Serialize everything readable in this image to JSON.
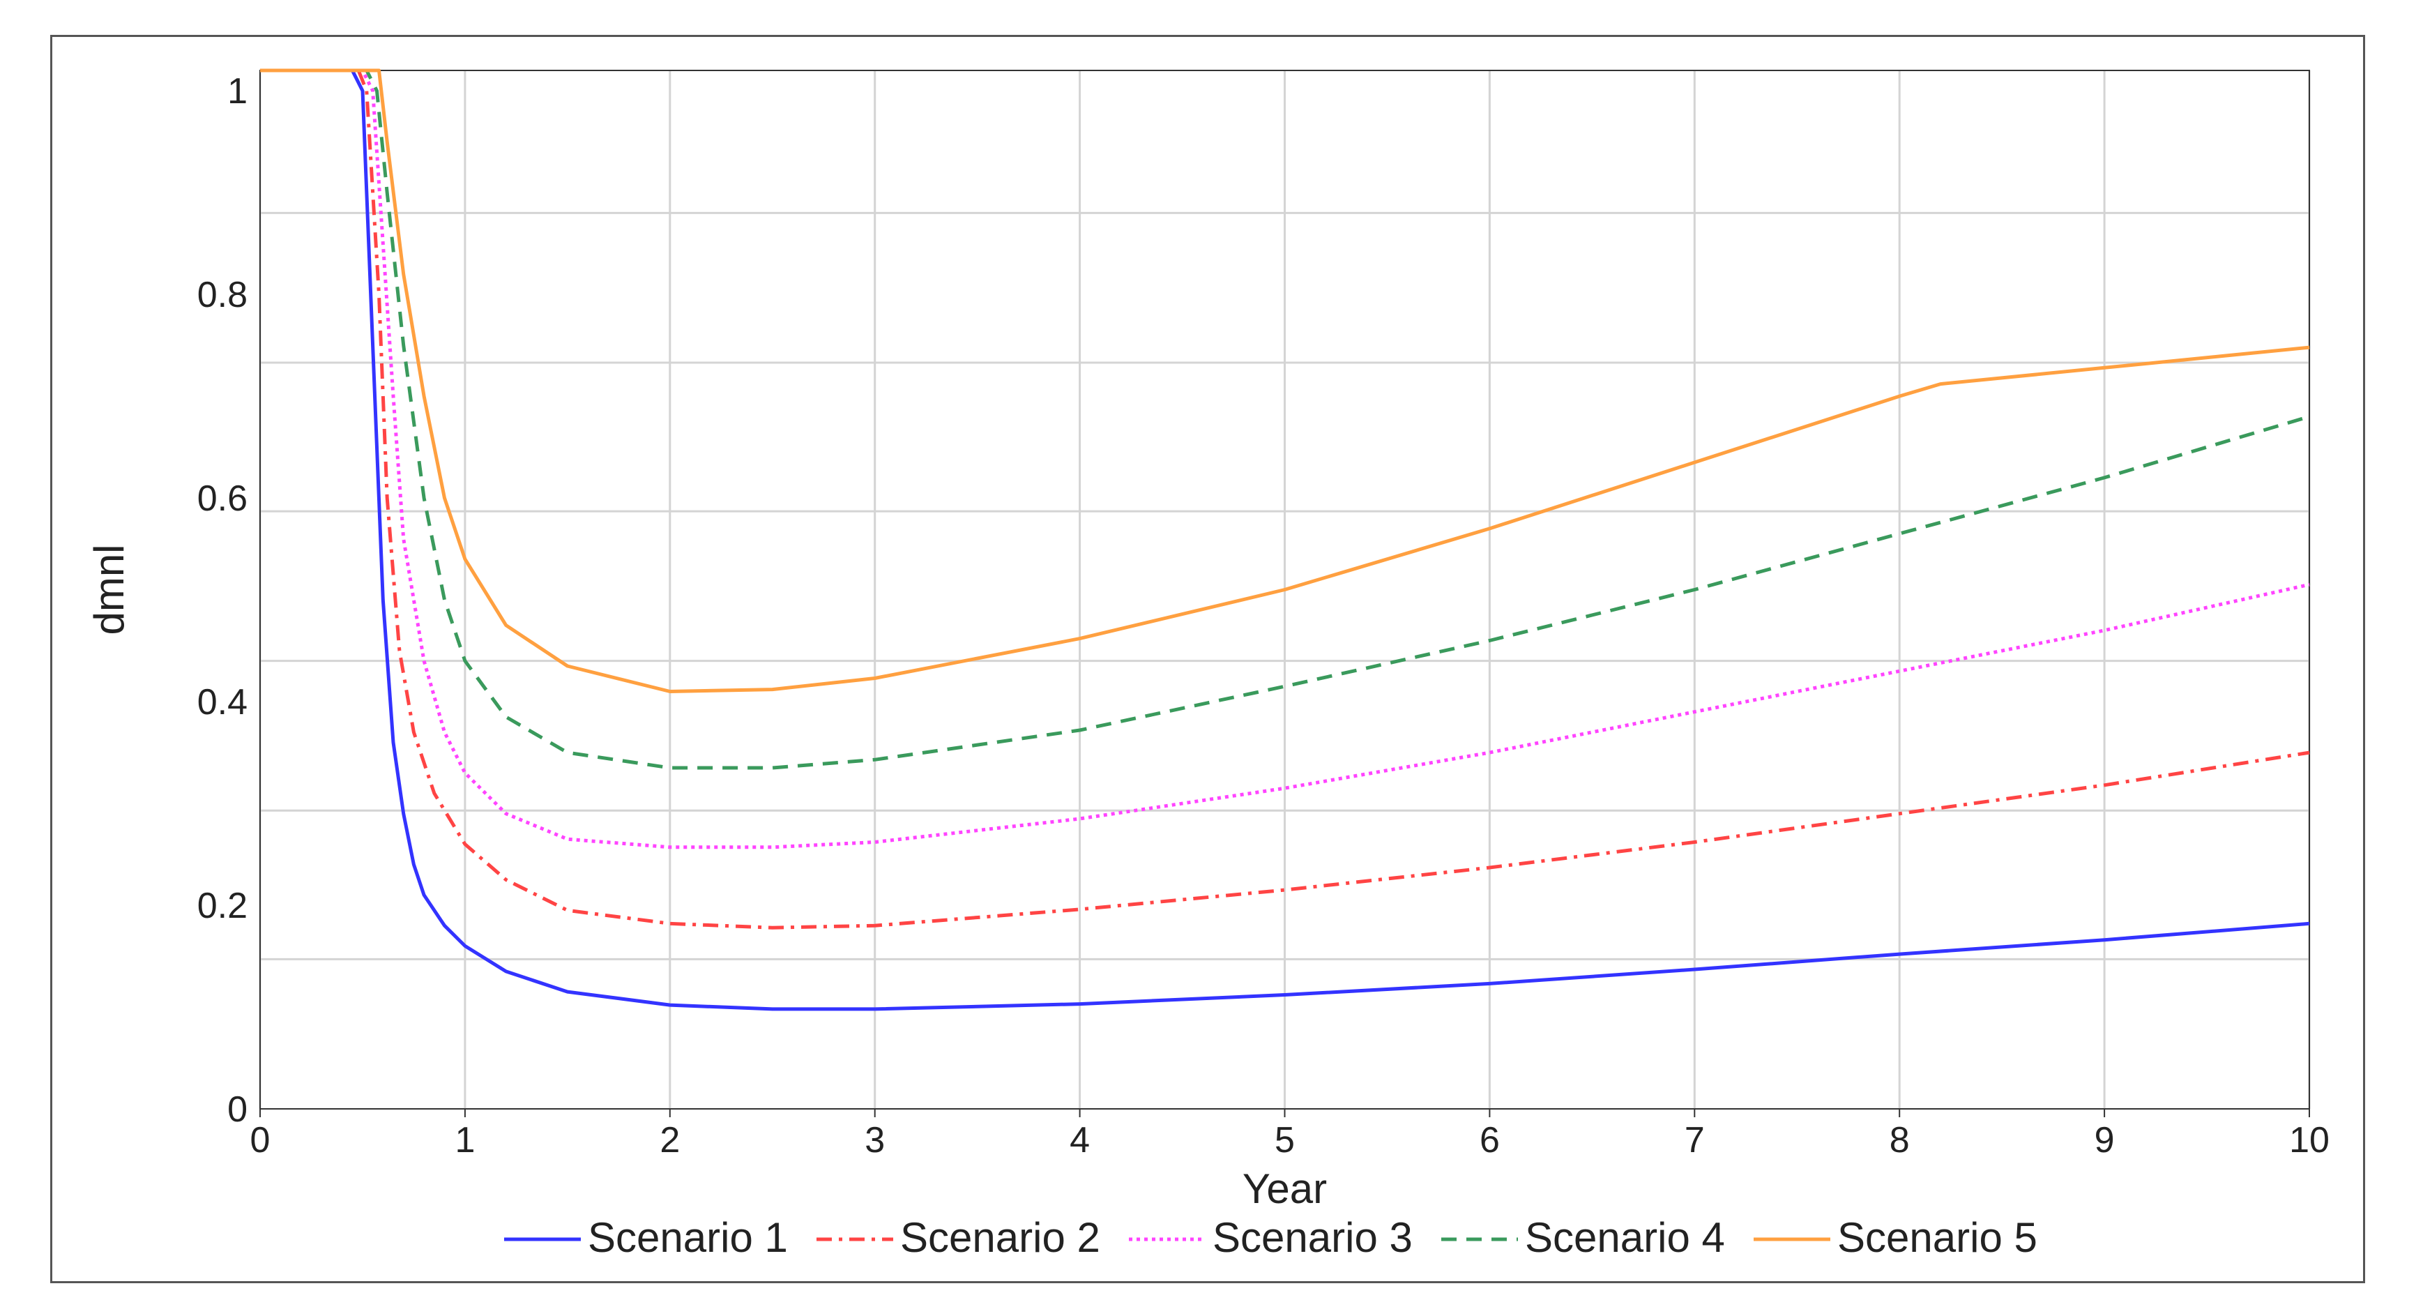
{
  "chart_data": {
    "type": "line",
    "title": "",
    "xlabel": "Year",
    "ylabel": "dmnl",
    "xlim": [
      0,
      10
    ],
    "ylim": [
      0,
      1.02
    ],
    "grid": true,
    "legend_position": "bottom",
    "x_ticks": [
      {
        "value": 0,
        "label": "0"
      },
      {
        "value": 1,
        "label": "1"
      },
      {
        "value": 2,
        "label": "2"
      },
      {
        "value": 3,
        "label": "3"
      },
      {
        "value": 4,
        "label": "4"
      },
      {
        "value": 5,
        "label": "5"
      },
      {
        "value": 6,
        "label": "6"
      },
      {
        "value": 7,
        "label": "7"
      },
      {
        "value": 8,
        "label": "8"
      },
      {
        "value": 9,
        "label": "9"
      },
      {
        "value": 10,
        "label": "10"
      }
    ],
    "y_ticks": [
      {
        "value": 0,
        "label": "0"
      },
      {
        "value": 0.2,
        "label": "0.2"
      },
      {
        "value": 0.4,
        "label": "0.4"
      },
      {
        "value": 0.6,
        "label": "0.6"
      },
      {
        "value": 0.8,
        "label": "0.8"
      },
      {
        "value": 1,
        "label": "1"
      }
    ],
    "y_gridlines": [
      0.147,
      0.293,
      0.44,
      0.587,
      0.733,
      0.88
    ],
    "series": [
      {
        "name": "Scenario 1",
        "color": "#3333ff",
        "dash": "solid",
        "points": [
          [
            0,
            1.02
          ],
          [
            0.45,
            1.02
          ],
          [
            0.5,
            1.0
          ],
          [
            0.55,
            0.75
          ],
          [
            0.6,
            0.5
          ],
          [
            0.65,
            0.36
          ],
          [
            0.7,
            0.29
          ],
          [
            0.75,
            0.24
          ],
          [
            0.8,
            0.21
          ],
          [
            0.9,
            0.18
          ],
          [
            1,
            0.16
          ],
          [
            1.2,
            0.135
          ],
          [
            1.5,
            0.115
          ],
          [
            2,
            0.102
          ],
          [
            2.5,
            0.098
          ],
          [
            3,
            0.098
          ],
          [
            4,
            0.103
          ],
          [
            5,
            0.112
          ],
          [
            6,
            0.123
          ],
          [
            7,
            0.137
          ],
          [
            8,
            0.152
          ],
          [
            9,
            0.166
          ],
          [
            10,
            0.182
          ]
        ]
      },
      {
        "name": "Scenario 2",
        "color": "#ff4444",
        "dash": "dashdot",
        "points": [
          [
            0,
            1.02
          ],
          [
            0.48,
            1.02
          ],
          [
            0.52,
            1.0
          ],
          [
            0.58,
            0.8
          ],
          [
            0.62,
            0.6
          ],
          [
            0.68,
            0.45
          ],
          [
            0.75,
            0.37
          ],
          [
            0.85,
            0.31
          ],
          [
            1,
            0.26
          ],
          [
            1.2,
            0.225
          ],
          [
            1.5,
            0.195
          ],
          [
            2,
            0.182
          ],
          [
            2.5,
            0.178
          ],
          [
            3,
            0.18
          ],
          [
            4,
            0.196
          ],
          [
            5,
            0.215
          ],
          [
            6,
            0.237
          ],
          [
            7,
            0.262
          ],
          [
            8,
            0.29
          ],
          [
            9,
            0.318
          ],
          [
            10,
            0.35
          ]
        ]
      },
      {
        "name": "Scenario 3",
        "color": "#ff44ff",
        "dash": "dotted",
        "points": [
          [
            0,
            1.02
          ],
          [
            0.5,
            1.02
          ],
          [
            0.55,
            1.0
          ],
          [
            0.6,
            0.85
          ],
          [
            0.65,
            0.7
          ],
          [
            0.7,
            0.56
          ],
          [
            0.8,
            0.44
          ],
          [
            0.9,
            0.37
          ],
          [
            1,
            0.33
          ],
          [
            1.2,
            0.29
          ],
          [
            1.5,
            0.265
          ],
          [
            2,
            0.257
          ],
          [
            2.5,
            0.257
          ],
          [
            3,
            0.262
          ],
          [
            4,
            0.285
          ],
          [
            5,
            0.315
          ],
          [
            6,
            0.35
          ],
          [
            7,
            0.39
          ],
          [
            8,
            0.43
          ],
          [
            9,
            0.47
          ],
          [
            10,
            0.515
          ]
        ]
      },
      {
        "name": "Scenario 4",
        "color": "#3a9a5c",
        "dash": "dashed",
        "points": [
          [
            0,
            1.02
          ],
          [
            0.52,
            1.02
          ],
          [
            0.57,
            1.0
          ],
          [
            0.62,
            0.9
          ],
          [
            0.7,
            0.75
          ],
          [
            0.8,
            0.6
          ],
          [
            0.9,
            0.5
          ],
          [
            1,
            0.44
          ],
          [
            1.2,
            0.385
          ],
          [
            1.5,
            0.35
          ],
          [
            2,
            0.335
          ],
          [
            2.5,
            0.335
          ],
          [
            3,
            0.343
          ],
          [
            4,
            0.372
          ],
          [
            5,
            0.415
          ],
          [
            6,
            0.46
          ],
          [
            7,
            0.51
          ],
          [
            8,
            0.565
          ],
          [
            9,
            0.62
          ],
          [
            10,
            0.68
          ]
        ]
      },
      {
        "name": "Scenario 5",
        "color": "#ffa040",
        "dash": "solid",
        "points": [
          [
            0,
            1.02
          ],
          [
            0.58,
            1.02
          ],
          [
            0.62,
            0.95
          ],
          [
            0.7,
            0.82
          ],
          [
            0.8,
            0.7
          ],
          [
            0.9,
            0.6
          ],
          [
            1,
            0.54
          ],
          [
            1.2,
            0.475
          ],
          [
            1.5,
            0.435
          ],
          [
            2,
            0.41
          ],
          [
            2.5,
            0.412
          ],
          [
            3,
            0.423
          ],
          [
            4,
            0.462
          ],
          [
            5,
            0.51
          ],
          [
            6,
            0.57
          ],
          [
            7,
            0.635
          ],
          [
            8,
            0.7
          ],
          [
            8.2,
            0.712
          ],
          [
            9,
            0.728
          ],
          [
            10,
            0.748
          ]
        ]
      }
    ]
  }
}
